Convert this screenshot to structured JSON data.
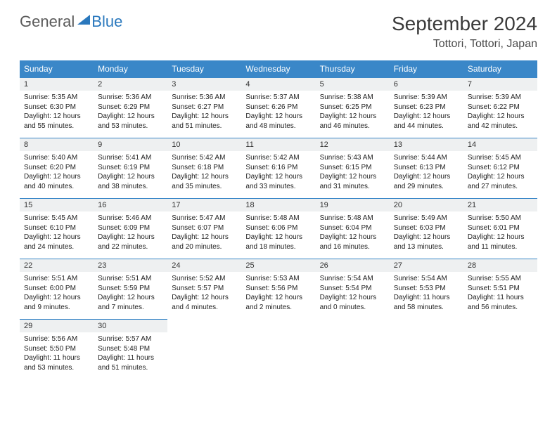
{
  "brand": {
    "part1": "General",
    "part2": "Blue"
  },
  "title": "September 2024",
  "location": "Tottori, Tottori, Japan",
  "colors": {
    "header_bg": "#3a87c8",
    "header_text": "#ffffff",
    "daynum_bg": "#eef0f1",
    "border": "#3a87c8",
    "brand_gray": "#5a5a5a",
    "brand_blue": "#2a78bd"
  },
  "weekdays": [
    "Sunday",
    "Monday",
    "Tuesday",
    "Wednesday",
    "Thursday",
    "Friday",
    "Saturday"
  ],
  "weeks": [
    [
      {
        "n": "1",
        "sr": "Sunrise: 5:35 AM",
        "ss": "Sunset: 6:30 PM",
        "dl": "Daylight: 12 hours and 55 minutes."
      },
      {
        "n": "2",
        "sr": "Sunrise: 5:36 AM",
        "ss": "Sunset: 6:29 PM",
        "dl": "Daylight: 12 hours and 53 minutes."
      },
      {
        "n": "3",
        "sr": "Sunrise: 5:36 AM",
        "ss": "Sunset: 6:27 PM",
        "dl": "Daylight: 12 hours and 51 minutes."
      },
      {
        "n": "4",
        "sr": "Sunrise: 5:37 AM",
        "ss": "Sunset: 6:26 PM",
        "dl": "Daylight: 12 hours and 48 minutes."
      },
      {
        "n": "5",
        "sr": "Sunrise: 5:38 AM",
        "ss": "Sunset: 6:25 PM",
        "dl": "Daylight: 12 hours and 46 minutes."
      },
      {
        "n": "6",
        "sr": "Sunrise: 5:39 AM",
        "ss": "Sunset: 6:23 PM",
        "dl": "Daylight: 12 hours and 44 minutes."
      },
      {
        "n": "7",
        "sr": "Sunrise: 5:39 AM",
        "ss": "Sunset: 6:22 PM",
        "dl": "Daylight: 12 hours and 42 minutes."
      }
    ],
    [
      {
        "n": "8",
        "sr": "Sunrise: 5:40 AM",
        "ss": "Sunset: 6:20 PM",
        "dl": "Daylight: 12 hours and 40 minutes."
      },
      {
        "n": "9",
        "sr": "Sunrise: 5:41 AM",
        "ss": "Sunset: 6:19 PM",
        "dl": "Daylight: 12 hours and 38 minutes."
      },
      {
        "n": "10",
        "sr": "Sunrise: 5:42 AM",
        "ss": "Sunset: 6:18 PM",
        "dl": "Daylight: 12 hours and 35 minutes."
      },
      {
        "n": "11",
        "sr": "Sunrise: 5:42 AM",
        "ss": "Sunset: 6:16 PM",
        "dl": "Daylight: 12 hours and 33 minutes."
      },
      {
        "n": "12",
        "sr": "Sunrise: 5:43 AM",
        "ss": "Sunset: 6:15 PM",
        "dl": "Daylight: 12 hours and 31 minutes."
      },
      {
        "n": "13",
        "sr": "Sunrise: 5:44 AM",
        "ss": "Sunset: 6:13 PM",
        "dl": "Daylight: 12 hours and 29 minutes."
      },
      {
        "n": "14",
        "sr": "Sunrise: 5:45 AM",
        "ss": "Sunset: 6:12 PM",
        "dl": "Daylight: 12 hours and 27 minutes."
      }
    ],
    [
      {
        "n": "15",
        "sr": "Sunrise: 5:45 AM",
        "ss": "Sunset: 6:10 PM",
        "dl": "Daylight: 12 hours and 24 minutes."
      },
      {
        "n": "16",
        "sr": "Sunrise: 5:46 AM",
        "ss": "Sunset: 6:09 PM",
        "dl": "Daylight: 12 hours and 22 minutes."
      },
      {
        "n": "17",
        "sr": "Sunrise: 5:47 AM",
        "ss": "Sunset: 6:07 PM",
        "dl": "Daylight: 12 hours and 20 minutes."
      },
      {
        "n": "18",
        "sr": "Sunrise: 5:48 AM",
        "ss": "Sunset: 6:06 PM",
        "dl": "Daylight: 12 hours and 18 minutes."
      },
      {
        "n": "19",
        "sr": "Sunrise: 5:48 AM",
        "ss": "Sunset: 6:04 PM",
        "dl": "Daylight: 12 hours and 16 minutes."
      },
      {
        "n": "20",
        "sr": "Sunrise: 5:49 AM",
        "ss": "Sunset: 6:03 PM",
        "dl": "Daylight: 12 hours and 13 minutes."
      },
      {
        "n": "21",
        "sr": "Sunrise: 5:50 AM",
        "ss": "Sunset: 6:01 PM",
        "dl": "Daylight: 12 hours and 11 minutes."
      }
    ],
    [
      {
        "n": "22",
        "sr": "Sunrise: 5:51 AM",
        "ss": "Sunset: 6:00 PM",
        "dl": "Daylight: 12 hours and 9 minutes."
      },
      {
        "n": "23",
        "sr": "Sunrise: 5:51 AM",
        "ss": "Sunset: 5:59 PM",
        "dl": "Daylight: 12 hours and 7 minutes."
      },
      {
        "n": "24",
        "sr": "Sunrise: 5:52 AM",
        "ss": "Sunset: 5:57 PM",
        "dl": "Daylight: 12 hours and 4 minutes."
      },
      {
        "n": "25",
        "sr": "Sunrise: 5:53 AM",
        "ss": "Sunset: 5:56 PM",
        "dl": "Daylight: 12 hours and 2 minutes."
      },
      {
        "n": "26",
        "sr": "Sunrise: 5:54 AM",
        "ss": "Sunset: 5:54 PM",
        "dl": "Daylight: 12 hours and 0 minutes."
      },
      {
        "n": "27",
        "sr": "Sunrise: 5:54 AM",
        "ss": "Sunset: 5:53 PM",
        "dl": "Daylight: 11 hours and 58 minutes."
      },
      {
        "n": "28",
        "sr": "Sunrise: 5:55 AM",
        "ss": "Sunset: 5:51 PM",
        "dl": "Daylight: 11 hours and 56 minutes."
      }
    ],
    [
      {
        "n": "29",
        "sr": "Sunrise: 5:56 AM",
        "ss": "Sunset: 5:50 PM",
        "dl": "Daylight: 11 hours and 53 minutes."
      },
      {
        "n": "30",
        "sr": "Sunrise: 5:57 AM",
        "ss": "Sunset: 5:48 PM",
        "dl": "Daylight: 11 hours and 51 minutes."
      },
      null,
      null,
      null,
      null,
      null
    ]
  ]
}
